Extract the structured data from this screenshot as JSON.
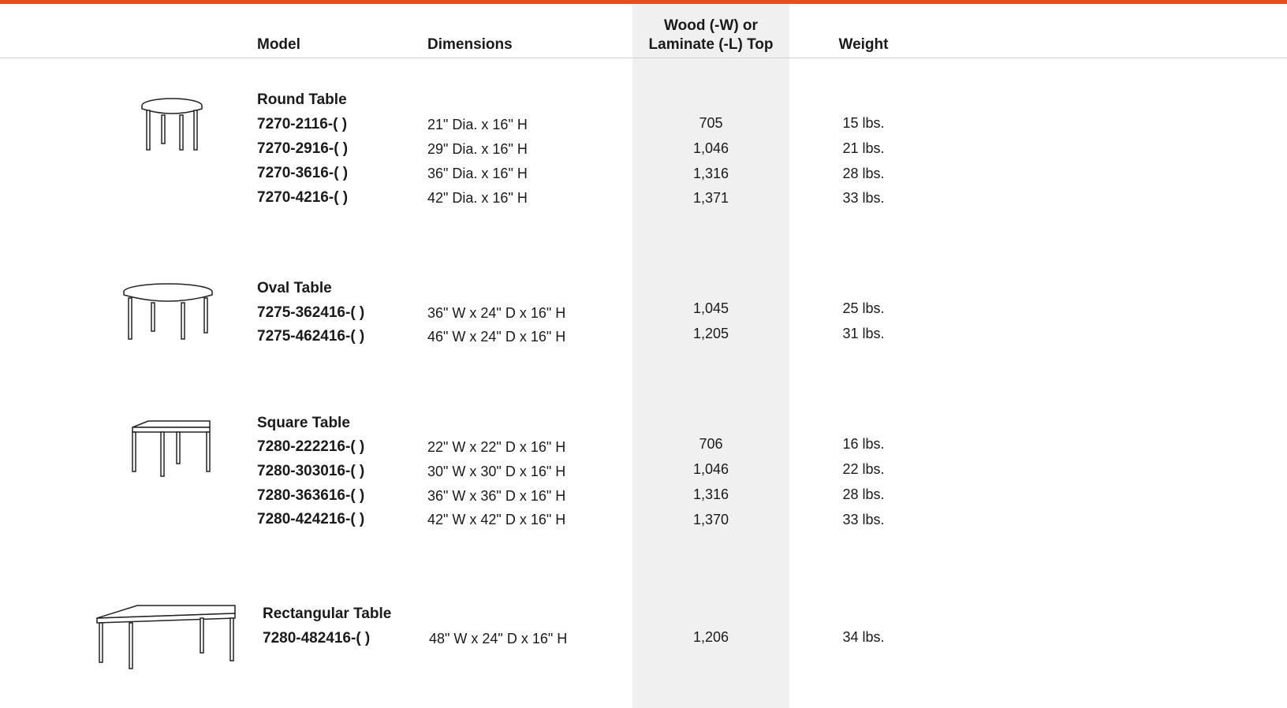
{
  "colors": {
    "accent": "#e84e1b",
    "price_band": "#f0f0f0"
  },
  "header": {
    "model": "Model",
    "dimensions": "Dimensions",
    "price_line1": "Wood (-W) or",
    "price_line2": "Laminate (-L) Top",
    "weight": "Weight"
  },
  "groups": [
    {
      "title": "Round Table",
      "icon": "round-table-icon",
      "rows": [
        {
          "model": "7270-2116-( )",
          "dimensions": "21\" Dia. x 16\" H",
          "price": "705",
          "weight": "15 lbs."
        },
        {
          "model": "7270-2916-( )",
          "dimensions": "29\" Dia. x 16\" H",
          "price": "1,046",
          "weight": "21 lbs."
        },
        {
          "model": "7270-3616-( )",
          "dimensions": "36\" Dia. x 16\" H",
          "price": "1,316",
          "weight": "28 lbs."
        },
        {
          "model": "7270-4216-( )",
          "dimensions": "42\" Dia. x 16\" H",
          "price": "1,371",
          "weight": "33 lbs."
        }
      ]
    },
    {
      "title": "Oval Table",
      "icon": "oval-table-icon",
      "rows": [
        {
          "model": "7275-362416-( )",
          "dimensions": "36\" W x 24\" D x 16\" H",
          "price": "1,045",
          "weight": "25 lbs."
        },
        {
          "model": "7275-462416-( )",
          "dimensions": "46\" W x 24\" D x 16\" H",
          "price": "1,205",
          "weight": "31 lbs."
        }
      ]
    },
    {
      "title": "Square Table",
      "icon": "square-table-icon",
      "rows": [
        {
          "model": "7280-222216-( )",
          "dimensions": "22\" W x 22\" D x 16\" H",
          "price": "706",
          "weight": "16 lbs."
        },
        {
          "model": "7280-303016-( )",
          "dimensions": "30\" W x 30\" D x 16\" H",
          "price": "1,046",
          "weight": "22 lbs."
        },
        {
          "model": "7280-363616-( )",
          "dimensions": "36\" W x 36\" D x 16\" H",
          "price": "1,316",
          "weight": "28 lbs."
        },
        {
          "model": "7280-424216-( )",
          "dimensions": "42\" W x 42\" D x 16\" H",
          "price": "1,370",
          "weight": "33 lbs."
        }
      ]
    },
    {
      "title": "Rectangular Table",
      "icon": "rectangular-table-icon",
      "rows": [
        {
          "model": "7280-482416-( )",
          "dimensions": "48\" W x 24\" D x 16\" H",
          "price": "1,206",
          "weight": "34 lbs."
        }
      ]
    }
  ]
}
